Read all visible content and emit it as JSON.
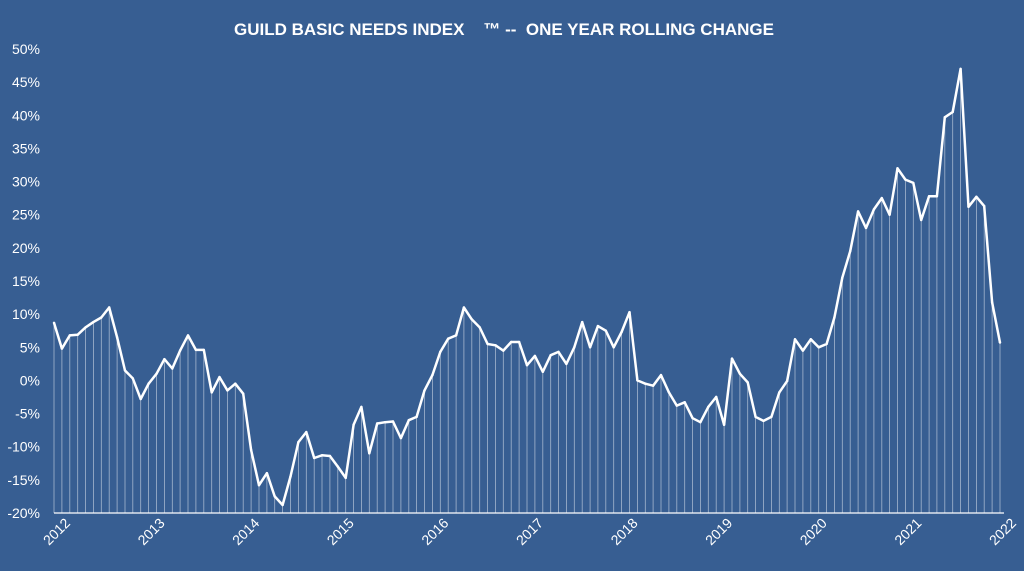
{
  "chart_data": {
    "type": "line",
    "title": "GUILD BASIC NEEDS INDEX    ™ --  ONE YEAR ROLLING CHANGE",
    "xlabel": "",
    "ylabel": "",
    "ylim": [
      -20,
      50
    ],
    "y_ticks": [
      "50%",
      "45%",
      "40%",
      "35%",
      "30%",
      "25%",
      "20%",
      "15%",
      "10%",
      "5%",
      "0%",
      "-5%",
      "-10%",
      "-15%",
      "-20%"
    ],
    "y_tick_values": [
      50,
      45,
      40,
      35,
      30,
      25,
      20,
      15,
      10,
      5,
      0,
      -5,
      -10,
      -15,
      -20
    ],
    "x_ticks": [
      "2012",
      "2013",
      "2014",
      "2015",
      "2016",
      "2017",
      "2018",
      "2019",
      "2020",
      "2021",
      "2022"
    ],
    "x_tick_values": [
      2012,
      2013,
      2014,
      2015,
      2016,
      2017,
      2018,
      2019,
      2020,
      2021,
      2022
    ],
    "xlim": [
      2012,
      2022
    ],
    "grid": false,
    "drop_lines": true,
    "line_color": "#ffffff",
    "background_color": "#375e92",
    "series": [
      {
        "x": [
          2012.0,
          2012.083,
          2012.167,
          2012.25,
          2012.333,
          2012.417,
          2012.5,
          2012.583,
          2012.667,
          2012.75,
          2012.833,
          2012.917,
          2013.0,
          2013.083,
          2013.167,
          2013.25,
          2013.333,
          2013.417,
          2013.5,
          2013.583,
          2013.667,
          2013.75,
          2013.833,
          2013.917,
          2014.0,
          2014.083,
          2014.167,
          2014.25,
          2014.333,
          2014.417,
          2014.5,
          2014.583,
          2014.667,
          2014.75,
          2014.833,
          2014.917,
          2015.0,
          2015.083,
          2015.167,
          2015.25,
          2015.333,
          2015.417,
          2015.5,
          2015.583,
          2015.667,
          2015.75,
          2015.833,
          2015.917,
          2016.0,
          2016.083,
          2016.167,
          2016.25,
          2016.333,
          2016.417,
          2016.5,
          2016.583,
          2016.667,
          2016.75,
          2016.833,
          2016.917,
          2017.0,
          2017.083,
          2017.167,
          2017.25,
          2017.333,
          2017.417,
          2017.5,
          2017.583,
          2017.667,
          2017.75,
          2017.833,
          2017.917,
          2018.0,
          2018.083,
          2018.167,
          2018.25,
          2018.333,
          2018.417,
          2018.5,
          2018.583,
          2018.667,
          2018.75,
          2018.833,
          2018.917,
          2019.0,
          2019.083,
          2019.167,
          2019.25,
          2019.333,
          2019.417,
          2019.5,
          2019.583,
          2019.667,
          2019.75,
          2019.833,
          2019.917,
          2020.0,
          2020.083,
          2020.167,
          2020.25,
          2020.333,
          2020.417,
          2020.5,
          2020.583,
          2020.667,
          2020.75,
          2020.833,
          2020.917,
          2021.0,
          2021.083,
          2021.167,
          2021.25,
          2021.333,
          2021.417,
          2021.5,
          2021.583,
          2021.667,
          2021.75,
          2021.833,
          2021.917,
          2022.0
        ],
        "values": [
          8.7,
          4.8,
          6.8,
          6.9,
          8.0,
          8.8,
          9.5,
          11.0,
          6.5,
          1.5,
          0.3,
          -2.8,
          -0.5,
          1.0,
          3.2,
          1.8,
          4.5,
          6.8,
          4.6,
          4.6,
          -1.8,
          0.5,
          -1.5,
          -0.5,
          -2.0,
          -10.5,
          -15.8,
          -14.0,
          -17.5,
          -18.8,
          -14.5,
          -9.3,
          -7.8,
          -11.7,
          -11.3,
          -11.4,
          -13.0,
          -14.7,
          -6.7,
          -4.0,
          -11.0,
          -6.5,
          -6.3,
          -6.2,
          -8.7,
          -6.0,
          -5.5,
          -1.5,
          0.8,
          4.3,
          6.3,
          6.8,
          11.0,
          9.2,
          8.0,
          5.5,
          5.3,
          4.5,
          5.8,
          5.8,
          2.3,
          3.7,
          1.3,
          3.8,
          4.3,
          2.5,
          5.0,
          8.8,
          5.0,
          8.2,
          7.5,
          5.0,
          7.3,
          10.3,
          0.0,
          -0.5,
          -0.8,
          0.8,
          -1.8,
          -3.8,
          -3.3,
          -5.7,
          -6.3,
          -4.0,
          -2.5,
          -6.7,
          3.3,
          1.0,
          -0.3,
          -5.5,
          -6.1,
          -5.5,
          -1.8,
          -0.1,
          6.2,
          4.5,
          6.2,
          5.0,
          5.5,
          9.5,
          15.5,
          19.5,
          25.5,
          23.0,
          25.8,
          27.5,
          25.0,
          32.0,
          30.3,
          29.8,
          24.2,
          27.8,
          27.8,
          39.7,
          40.5,
          47.0,
          26.2,
          27.7,
          26.3,
          11.8,
          5.7
        ]
      }
    ]
  }
}
